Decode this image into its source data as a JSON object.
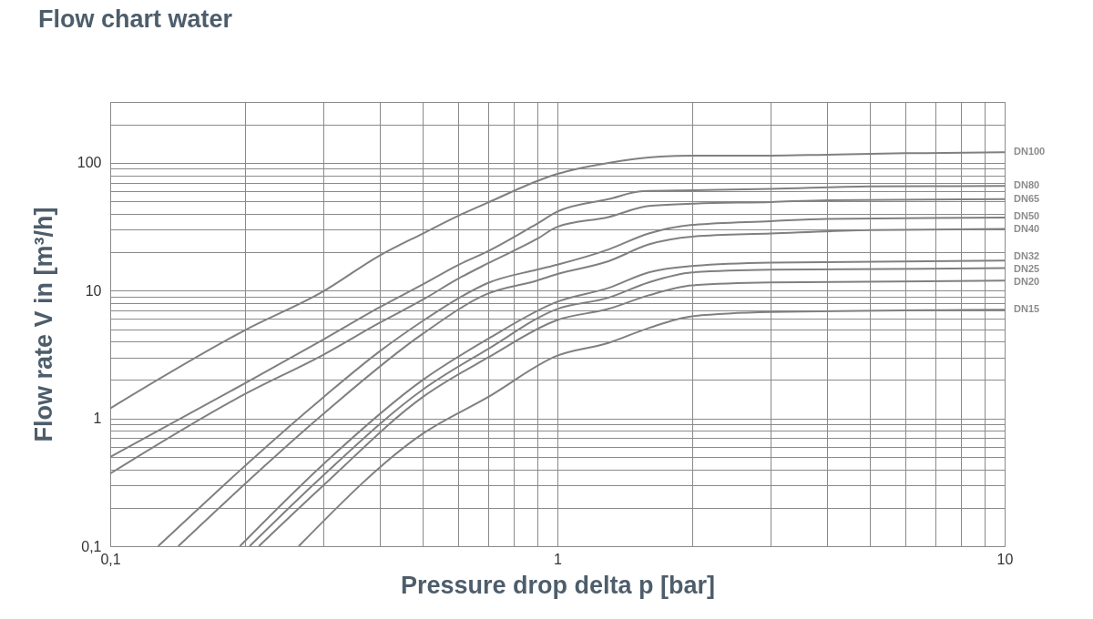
{
  "chart_data": {
    "type": "line",
    "title": "Flow chart water",
    "xlabel": "Pressure drop delta p [bar]",
    "ylabel": "Flow rate V in [m³/h]",
    "log": "xy",
    "grid": true,
    "legend": false,
    "line_style": "solid",
    "xlim": [
      0.1,
      10
    ],
    "ylim": [
      0.1,
      300
    ],
    "xticks": [
      {
        "value": 0.1,
        "label": "0,1"
      },
      {
        "value": 0.2,
        "label": null
      },
      {
        "value": 0.3,
        "label": null
      },
      {
        "value": 0.4,
        "label": null
      },
      {
        "value": 0.5,
        "label": null
      },
      {
        "value": 0.6,
        "label": null
      },
      {
        "value": 0.7,
        "label": null
      },
      {
        "value": 0.8,
        "label": null
      },
      {
        "value": 0.9,
        "label": null
      },
      1,
      {
        "value": 2,
        "label": null
      },
      {
        "value": 3,
        "label": null
      },
      {
        "value": 4,
        "label": null
      },
      {
        "value": 5,
        "label": null
      },
      {
        "value": 6,
        "label": null
      },
      {
        "value": 7,
        "label": null
      },
      {
        "value": 8,
        "label": null
      },
      {
        "value": 9,
        "label": null
      },
      10
    ],
    "yticks": [
      {
        "value": 0.1,
        "label": "0,1"
      },
      {
        "value": 0.2,
        "label": null
      },
      {
        "value": 0.3,
        "label": null
      },
      {
        "value": 0.4,
        "label": null
      },
      {
        "value": 0.5,
        "label": null
      },
      {
        "value": 0.6,
        "label": null
      },
      {
        "value": 0.7,
        "label": null
      },
      {
        "value": 0.8,
        "label": null
      },
      {
        "value": 0.9,
        "label": null
      },
      1,
      {
        "value": 2,
        "label": null
      },
      {
        "value": 3,
        "label": null
      },
      {
        "value": 4,
        "label": null
      },
      {
        "value": 5,
        "label": null
      },
      {
        "value": 6,
        "label": null
      },
      {
        "value": 7,
        "label": null
      },
      {
        "value": 8,
        "label": null
      },
      {
        "value": 9,
        "label": null
      },
      10,
      {
        "value": 20,
        "label": null
      },
      {
        "value": 30,
        "label": null
      },
      {
        "value": 40,
        "label": null
      },
      {
        "value": 50,
        "label": null
      },
      {
        "value": 60,
        "label": null
      },
      {
        "value": 70,
        "label": null
      },
      {
        "value": 80,
        "label": null
      },
      {
        "value": 90,
        "label": null
      },
      100,
      {
        "value": 200,
        "label": null
      },
      {
        "value": 300,
        "label": null
      }
    ],
    "series": [
      {
        "name": "DN100",
        "color": "#808080",
        "x": [
          0.1,
          0.2,
          0.3,
          0.4,
          0.5,
          0.6,
          0.7,
          0.9,
          1,
          1.3,
          1.7,
          2,
          3,
          4,
          6,
          10
        ],
        "values": [
          1.2,
          4.9,
          9.9,
          18.8,
          28,
          38.5,
          49,
          72,
          82,
          100,
          112,
          114,
          114,
          116,
          119,
          121
        ]
      },
      {
        "name": "DN80",
        "color": "#808080",
        "x": [
          0.1,
          0.2,
          0.3,
          0.4,
          0.5,
          0.6,
          0.7,
          0.9,
          1,
          1.3,
          1.55,
          2,
          3,
          5,
          10
        ],
        "values": [
          0.5,
          1.88,
          4.16,
          7.4,
          11.2,
          15.9,
          20.4,
          33.4,
          41.6,
          52,
          60,
          61,
          62.5,
          65.5,
          66
        ]
      },
      {
        "name": "DN65",
        "color": "#808080",
        "x": [
          0.1,
          0.2,
          0.3,
          0.4,
          0.5,
          0.6,
          0.7,
          0.9,
          1,
          1.3,
          1.6,
          2,
          3,
          4,
          10
        ],
        "values": [
          0.37,
          1.55,
          3.16,
          5.6,
          8.5,
          12.4,
          16.4,
          25.4,
          31.6,
          37.7,
          46,
          47.9,
          49.4,
          51,
          52
        ]
      },
      {
        "name": "DN50",
        "color": "#808080",
        "x": [
          0.128,
          0.3,
          0.4,
          0.5,
          0.6,
          0.7,
          0.9,
          1,
          1.3,
          1.6,
          2,
          3,
          4,
          10
        ],
        "values": [
          0.1,
          1.47,
          3.34,
          5.8,
          8.7,
          11.5,
          14.6,
          16,
          21,
          28,
          32.7,
          35,
          36.5,
          37.3
        ]
      },
      {
        "name": "DN40",
        "color": "#808080",
        "x": [
          0.142,
          0.3,
          0.5,
          0.7,
          0.9,
          1,
          1.3,
          1.6,
          2,
          3,
          5,
          10
        ],
        "values": [
          0.1,
          1.09,
          4.6,
          9.5,
          12,
          13.5,
          17,
          23,
          26.5,
          28,
          29.8,
          30.4
        ]
      },
      {
        "name": "DN32",
        "color": "#808080",
        "x": [
          0.195,
          0.3,
          0.5,
          0.7,
          1,
          1.3,
          1.6,
          2,
          3,
          10
        ],
        "values": [
          0.1,
          0.44,
          2.0,
          4.2,
          8.2,
          10.5,
          13.9,
          15.6,
          16.6,
          17.2
        ]
      },
      {
        "name": "DN25",
        "color": "#808080",
        "x": [
          0.205,
          0.3,
          0.5,
          0.7,
          1,
          1.3,
          1.6,
          2,
          3,
          10
        ],
        "values": [
          0.1,
          0.36,
          1.68,
          3.5,
          7.2,
          8.8,
          11.6,
          13.9,
          14.6,
          15
        ]
      },
      {
        "name": "DN20",
        "color": "#808080",
        "x": [
          0.215,
          0.3,
          0.5,
          0.7,
          1,
          1.3,
          1.6,
          2,
          3,
          10
        ],
        "values": [
          0.1,
          0.3,
          1.47,
          3.0,
          5.9,
          7.2,
          9.2,
          11,
          11.6,
          12
        ]
      },
      {
        "name": "DN15",
        "color": "#808080",
        "x": [
          0.264,
          0.5,
          0.7,
          1,
          1.3,
          1.6,
          2,
          3,
          10
        ],
        "values": [
          0.1,
          0.76,
          1.47,
          3.1,
          3.9,
          5.1,
          6.3,
          6.8,
          7.1
        ]
      }
    ]
  }
}
